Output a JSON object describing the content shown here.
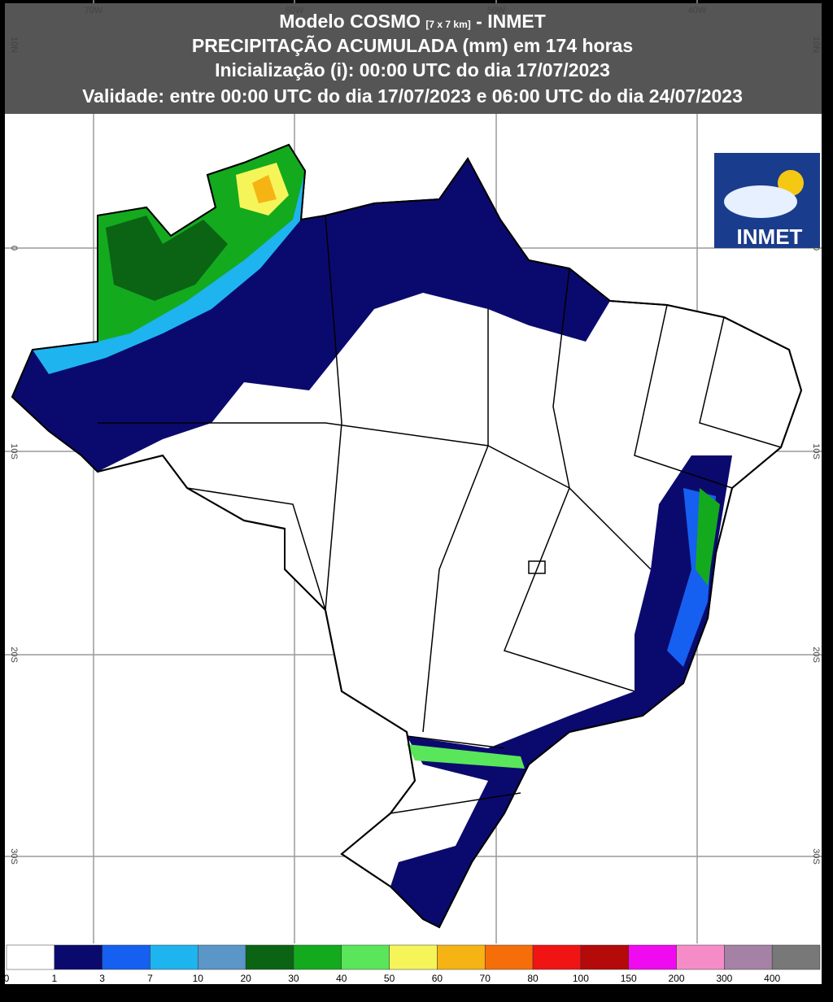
{
  "header": {
    "title_main": "Modelo COSMO",
    "title_resolution": "[7 x 7 km]",
    "title_suffix": "- INMET",
    "line2": "PRECIPITAÇÃO ACUMULADA (mm) em 174 horas",
    "line3": "Inicialização (i): 00:00 UTC do dia 17/07/2023",
    "line4": "Validade: entre 00:00 UTC do dia 17/07/2023 e 06:00 UTC do dia 24/07/2023"
  },
  "logo": {
    "text": "INMET"
  },
  "grid": {
    "longitudes": [
      "70W",
      "60W",
      "50W",
      "40W"
    ],
    "latitudes": [
      "10N",
      "0",
      "10S",
      "20S",
      "30S"
    ]
  },
  "colorbar": {
    "labels": [
      "0",
      "1",
      "3",
      "7",
      "10",
      "20",
      "30",
      "40",
      "50",
      "60",
      "70",
      "80",
      "100",
      "150",
      "200",
      "300",
      "400"
    ],
    "colors": [
      "#ffffff",
      "#0a0a6e",
      "#1560f0",
      "#1eb4f0",
      "#5a96c8",
      "#0a6414",
      "#14aa1e",
      "#5ae65a",
      "#f5f55a",
      "#f5b414",
      "#f56e0a",
      "#f01414",
      "#b40a0a",
      "#f00af0",
      "#f58cc8",
      "#a582a5",
      "#787878"
    ]
  }
}
